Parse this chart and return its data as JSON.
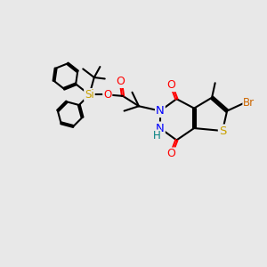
{
  "bg_color": "#e8e8e8",
  "bond_color": "#000000",
  "bond_width": 1.5,
  "dbo": 0.06,
  "atom_colors": {
    "O": "#ff0000",
    "N": "#0000ff",
    "S": "#c8a000",
    "Si": "#c8a000",
    "Br": "#cc6600",
    "H": "#008080",
    "C": "#000000"
  },
  "font_size": 8.5,
  "figsize": [
    3.0,
    3.0
  ],
  "dpi": 100
}
